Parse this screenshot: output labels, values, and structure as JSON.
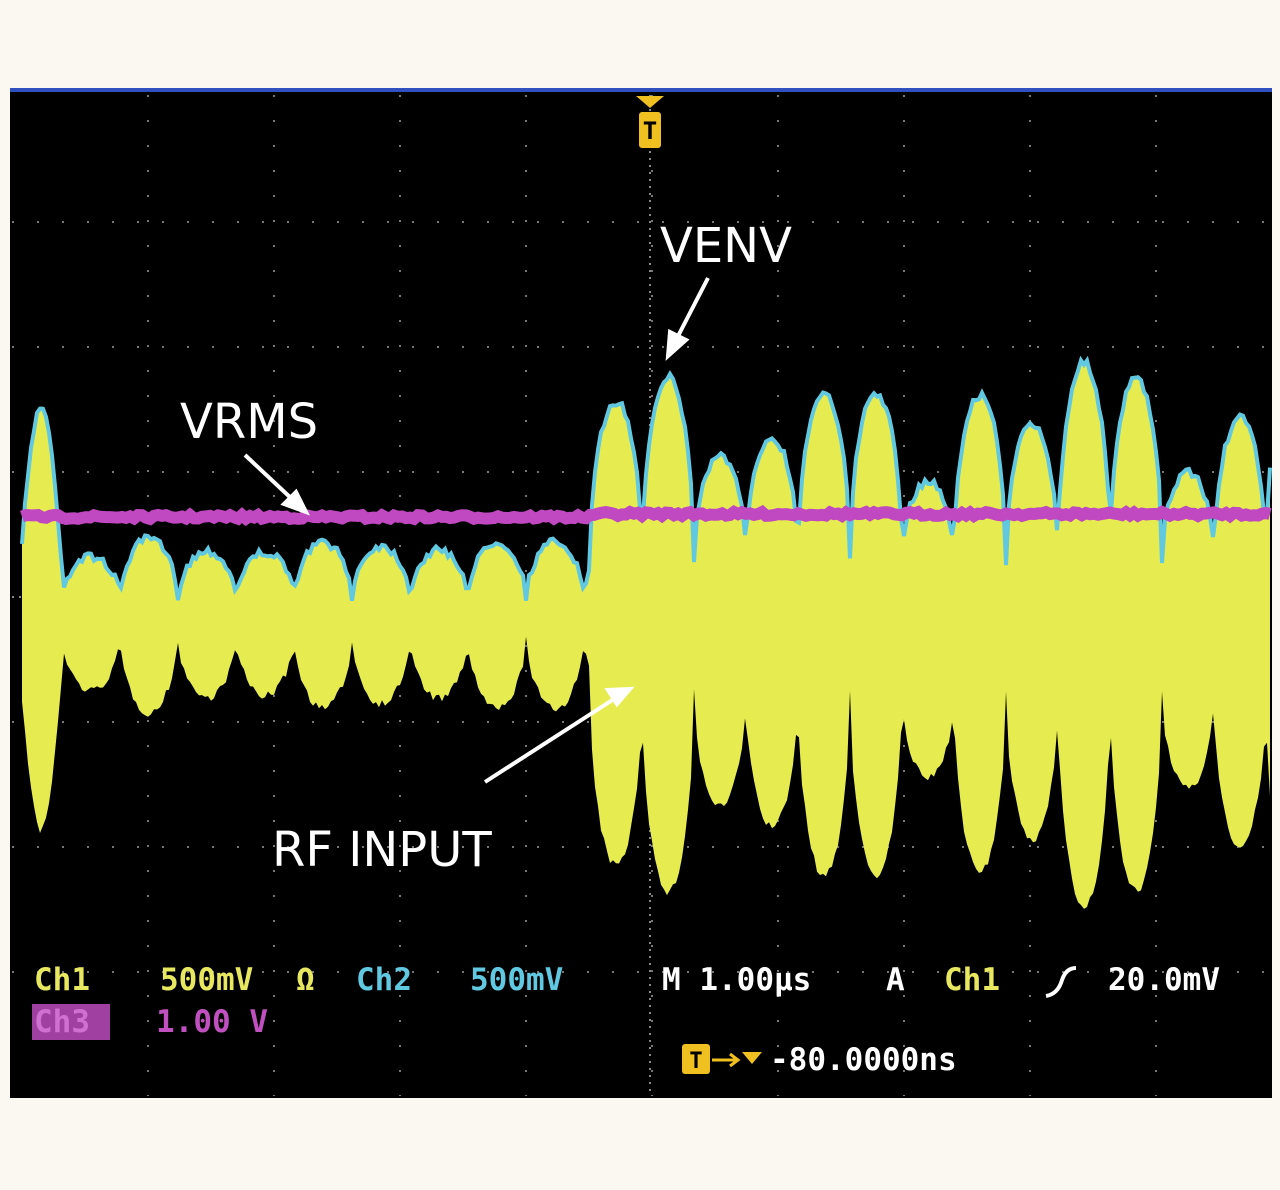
{
  "trigger_marker": "T",
  "annotations": {
    "venv": "VENV",
    "vrms": "VRMS",
    "rf_input": "RF INPUT"
  },
  "readout": {
    "ch1_label": "Ch1",
    "ch1_scale": "500mV",
    "ch1_coupling": "Ω",
    "ch2_label": "Ch2",
    "ch2_scale": "500mV",
    "timebase": "M 1.00µs",
    "trigger_mode": "A",
    "trigger_source": "Ch1",
    "trigger_level": "20.0mV",
    "ch3_label": "Ch3",
    "ch3_scale": "1.00 V",
    "trigger_offset": "-80.0000ns"
  }
}
